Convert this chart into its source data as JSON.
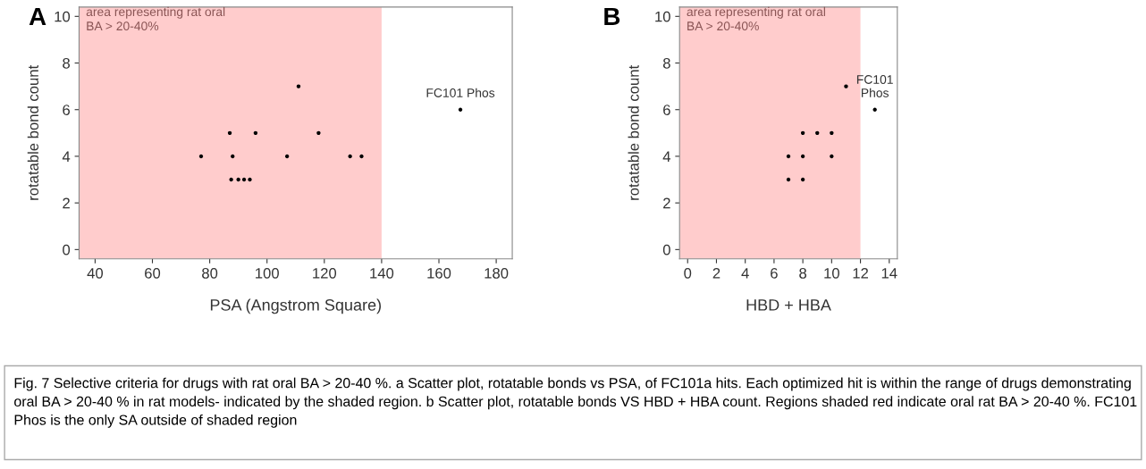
{
  "chart_data": [
    {
      "type": "scatter",
      "title": "A",
      "xlabel": "PSA (Angstrom Square)",
      "ylabel": "rotatable bond count",
      "x": [
        77,
        88,
        87,
        96,
        111,
        118,
        107,
        129,
        133,
        87.5,
        90,
        92,
        94,
        167.5
      ],
      "values": [
        4,
        4,
        5,
        5,
        7,
        5,
        4,
        4,
        4,
        3,
        3,
        3,
        3,
        6
      ],
      "color": "#000000",
      "marker": "circle",
      "xlim": [
        34.4,
        185.6
      ],
      "ylim": [
        -0.4,
        10.4
      ],
      "xticks": [
        40,
        60,
        80,
        100,
        120,
        140,
        160,
        180
      ],
      "yticks": [
        0,
        2,
        4,
        6,
        8,
        10
      ],
      "bands": [
        {
          "axis": "x",
          "from": 34.4,
          "to": 140,
          "label": "area representing rat oral\nBA > 20-40%",
          "color": "#ffcccc"
        }
      ],
      "annotations": [
        {
          "text": "FC101 Phos",
          "x": 167.5,
          "y": 6
        },
        "Fig. 7 Selective criteria for drugs with rat oral BA > 20-40 %. a Scatter plot, rotatable bonds vs PSA, of FC101a hits. Each optimized hit is within the range of drugs demonstrating oral BA > 20-40 % in rat models- indicated by the shaded region. b Scatter plot, rotatable bonds VS HBD + HBA count. Regions shaded red indicate oral rat BA > 20-40 %. FC101 Phos is the only SA outside of shaded region"
      ],
      "grid": false,
      "legend": false
    },
    {
      "type": "scatter",
      "title": "B",
      "xlabel": "HBD + HBA",
      "ylabel": "rotatable bond count",
      "x": [
        7,
        7,
        8,
        8,
        8,
        9,
        10,
        10,
        11,
        13
      ],
      "values": [
        4,
        3,
        5,
        4,
        3,
        5,
        5,
        4,
        7,
        6
      ],
      "color": "#000000",
      "marker": "circle",
      "xlim": [
        -0.56,
        14.56
      ],
      "ylim": [
        -0.4,
        10.4
      ],
      "xticks": [
        0,
        2,
        4,
        6,
        8,
        10,
        12,
        14
      ],
      "yticks": [
        0,
        2,
        4,
        6,
        8,
        10
      ],
      "bands": [
        {
          "axis": "x",
          "from": -0.56,
          "to": 12,
          "label": "area representing rat oral\nBA > 20-40%",
          "color": "#ffcccc"
        }
      ],
      "annotations": [
        {
          "text": "FC101\nPhos",
          "x": 13,
          "y": 6
        }
      ],
      "grid": false,
      "legend": false
    }
  ]
}
